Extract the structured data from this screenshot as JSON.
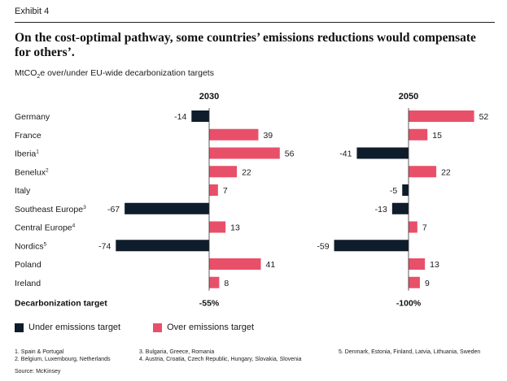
{
  "header": {
    "exhibit": "Exhibit 4",
    "title": "On the cost-optimal pathway, some countries’ emissions reductions would compensate for others’.",
    "subtitle_pre": "MtCO",
    "subtitle_sub": "2",
    "subtitle_post": "e over/under EU-wide decarbonization targets"
  },
  "colors": {
    "under": "#0e1c2b",
    "over": "#e8506a"
  },
  "chart_data": {
    "type": "bar",
    "orientation": "horizontal-diverging",
    "categories": [
      {
        "name": "Germany",
        "sup": ""
      },
      {
        "name": "France",
        "sup": ""
      },
      {
        "name": "Iberia",
        "sup": "1"
      },
      {
        "name": "Benelux",
        "sup": "2"
      },
      {
        "name": "Italy",
        "sup": ""
      },
      {
        "name": "Southeast Europe",
        "sup": "3"
      },
      {
        "name": "Central Europe",
        "sup": "4"
      },
      {
        "name": "Nordics",
        "sup": "5"
      },
      {
        "name": "Poland",
        "sup": ""
      },
      {
        "name": "Ireland",
        "sup": ""
      }
    ],
    "panels": [
      {
        "year": "2030",
        "values": [
          -14,
          39,
          56,
          22,
          7,
          -67,
          13,
          -74,
          41,
          8
        ],
        "target": "-55%"
      },
      {
        "year": "2050",
        "values": [
          52,
          15,
          -41,
          22,
          -5,
          -13,
          7,
          -59,
          13,
          9
        ],
        "target": "-100%"
      }
    ],
    "target_row_label": "Decarbonization target",
    "legend": [
      "Under emissions target",
      "Over emissions target"
    ]
  },
  "footnotes": [
    "1. Spain & Portugal",
    "2. Belgium, Luxembourg, Netherlands",
    "3. Bulgaria, Greece, Romania",
    "4. Austria, Croatia, Czech Republic, Hungary, Slovakia, Slovenia",
    "5. Denmark, Estonia, Finland, Latvia, Lithuania, Sweden"
  ],
  "source": "Source: McKinsey"
}
